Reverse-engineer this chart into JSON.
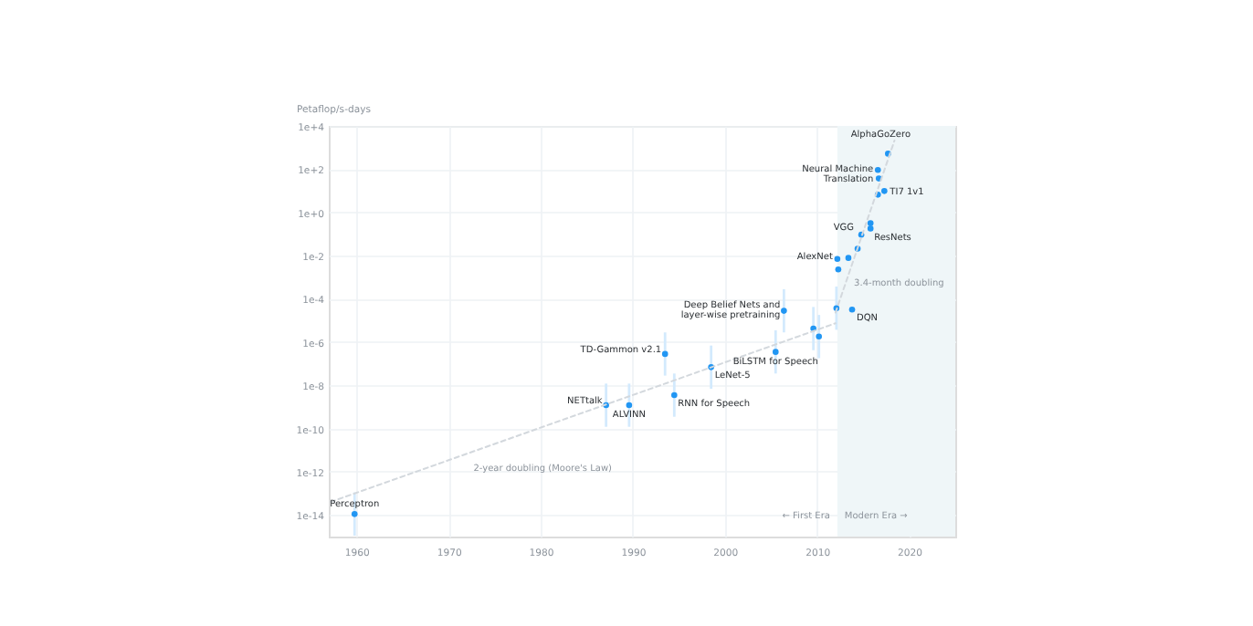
{
  "chart_data": {
    "type": "scatter",
    "ylabel": "Petaflop/s-days",
    "log": "y",
    "grid": true,
    "xlim": [
      1957,
      2025
    ],
    "ylim": [
      1e-15,
      10000
    ],
    "xticks": [
      1960,
      1970,
      1980,
      1990,
      2000,
      2010,
      2020
    ],
    "yticks": [
      {
        "value": 10000,
        "label": "1e+4"
      },
      {
        "value": 100,
        "label": "1e+2"
      },
      {
        "value": 1,
        "label": "1e+0"
      },
      {
        "value": 0.01,
        "label": "1e-2"
      },
      {
        "value": 0.0001,
        "label": "1e-4"
      },
      {
        "value": 1e-06,
        "label": "1e-6"
      },
      {
        "value": 1e-08,
        "label": "1e-8"
      },
      {
        "value": 1e-10,
        "label": "1e-10"
      },
      {
        "value": 1e-12,
        "label": "1e-12"
      },
      {
        "value": 1e-14,
        "label": "1e-14"
      }
    ],
    "bands": [
      {
        "axis": "x",
        "from": 2012.2,
        "to": 2025,
        "label": "Modern Era →",
        "color": "#eff6f8"
      }
    ],
    "series": [
      {
        "color": "#2196f3",
        "marker": "circle",
        "x": [
          1959.8,
          1987.1,
          1989.6,
          1993.5,
          1994.5,
          1998.5,
          2005.5,
          2006.4,
          2009.6,
          2010.2,
          2012.1,
          2013.8,
          2012.2,
          2012.3,
          2013.4,
          2014.4,
          2014.8,
          2015.8,
          2015.8,
          2016.6,
          2017.3,
          2016.7,
          2016.6,
          2017.7
        ],
        "values": [
          1.1e-14,
          1.2e-09,
          1.2e-09,
          2.8e-07,
          3.5e-09,
          6.9e-08,
          3.5e-07,
          2.8e-05,
          4.2e-06,
          1.8e-06,
          3.7e-05,
          3.2e-05,
          0.007,
          0.0023,
          0.0078,
          0.021,
          0.093,
          0.32,
          0.18,
          6.6,
          9.7,
          37,
          92,
          520
        ],
        "errors": [
          [
            1.1e-15,
            1.1e-13
          ],
          [
            1.2e-10,
            1.2e-08
          ],
          [
            1.2e-10,
            1.2e-08
          ],
          [
            2.8e-08,
            2.8e-06
          ],
          [
            3.5e-10,
            3.5e-08
          ],
          [
            6.9e-09,
            6.9e-07
          ],
          [
            3.5e-08,
            3.5e-06
          ],
          [
            2.8e-06,
            0.00028
          ],
          [
            4.2e-07,
            4.2e-05
          ],
          [
            1.8e-07,
            1.8e-05
          ],
          [
            3.7e-06,
            0.00037
          ],
          null,
          null,
          null,
          null,
          null,
          null,
          null,
          null,
          null,
          null,
          null,
          null,
          null
        ]
      },
      {
        "type": "line",
        "name": "2-year doubling (Moore's Law)",
        "color": "#d3d8dd",
        "line_style": "dashed",
        "x": [
          1957.2,
          2012.0
        ],
        "values": [
          4e-14,
          7.4e-06
        ]
      },
      {
        "type": "line",
        "name": "3.4-month doubling",
        "color": "#d3d8dd",
        "line_style": "dashed",
        "x": [
          2012.0,
          2018.4
        ],
        "values": [
          2.3e-05,
          2100
        ]
      }
    ],
    "annotations": [
      {
        "text": "Perceptron",
        "x": 1959.8,
        "y": 1.1e-14
      },
      {
        "text": "NETtalk",
        "x": 1987.1,
        "y": 1.2e-09
      },
      {
        "text": "ALVINN",
        "x": 1989.6,
        "y": 1.2e-09
      },
      {
        "text": "TD-Gammon v2.1",
        "x": 1993.5,
        "y": 2.8e-07
      },
      {
        "text": "RNN for Speech",
        "x": 1994.5,
        "y": 3.5e-09
      },
      {
        "text": "LeNet-5",
        "x": 1998.5,
        "y": 6.9e-08
      },
      {
        "text": "BiLSTM for Speech",
        "x": 2005.5,
        "y": 3.5e-07
      },
      {
        "text": "Deep Belief Nets and\nlayer-wise pretraining",
        "x": 2006.4,
        "y": 2.8e-05
      },
      {
        "text": "DQN",
        "x": 2013.8,
        "y": 3.2e-05
      },
      {
        "text": "AlexNet",
        "x": 2012.2,
        "y": 0.007
      },
      {
        "text": "VGG",
        "x": 2014.8,
        "y": 0.093
      },
      {
        "text": "ResNets",
        "x": 2015.8,
        "y": 0.18
      },
      {
        "text": "Neural Machine\nTranslation",
        "x": 2016.6,
        "y": 92
      },
      {
        "text": "TI7 1v1",
        "x": 2017.3,
        "y": 9.7
      },
      {
        "text": "AlphaGoZero",
        "x": 2017.7,
        "y": 520
      },
      {
        "text": "← First Era",
        "x": 2012.2,
        "y": 1e-14
      }
    ]
  }
}
